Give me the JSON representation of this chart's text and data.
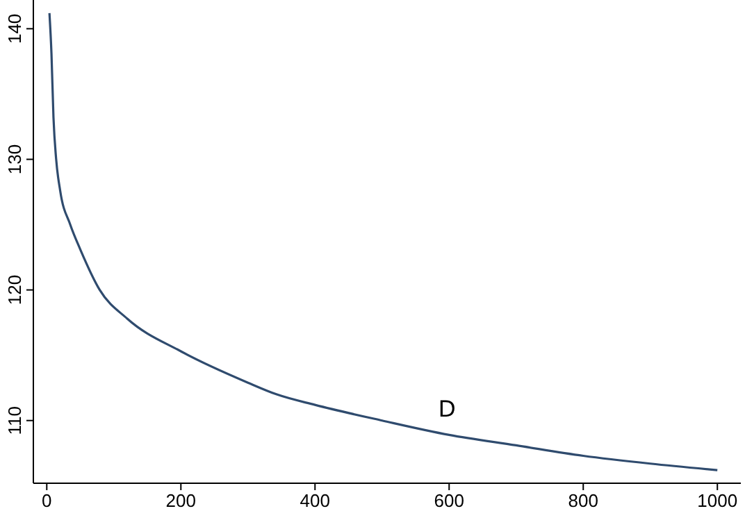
{
  "chart_data": {
    "type": "line",
    "xlim": [
      -20,
      1035
    ],
    "ylim": [
      105.2,
      142.2
    ],
    "xticks": [
      0,
      200,
      400,
      600,
      800,
      1000
    ],
    "yticks": [
      110,
      120,
      130,
      140
    ],
    "grid": false,
    "marker": "none",
    "line_style": "solid",
    "x": [
      4,
      7,
      10,
      14,
      20,
      35,
      50,
      79,
      120,
      200,
      300,
      343,
      400,
      500,
      600,
      700,
      800,
      900,
      1000
    ],
    "series": [
      {
        "color": "#2f4b6e",
        "values": [
          141.2,
          138.1,
          133.2,
          130,
          127.6,
          125,
          123.1,
          120,
          117.8,
          115.3,
          112.9,
          112,
          111.2,
          110,
          108.9,
          108.1,
          107.3,
          106.7,
          106.2
        ]
      }
    ],
    "annotations": [
      "D"
    ]
  }
}
